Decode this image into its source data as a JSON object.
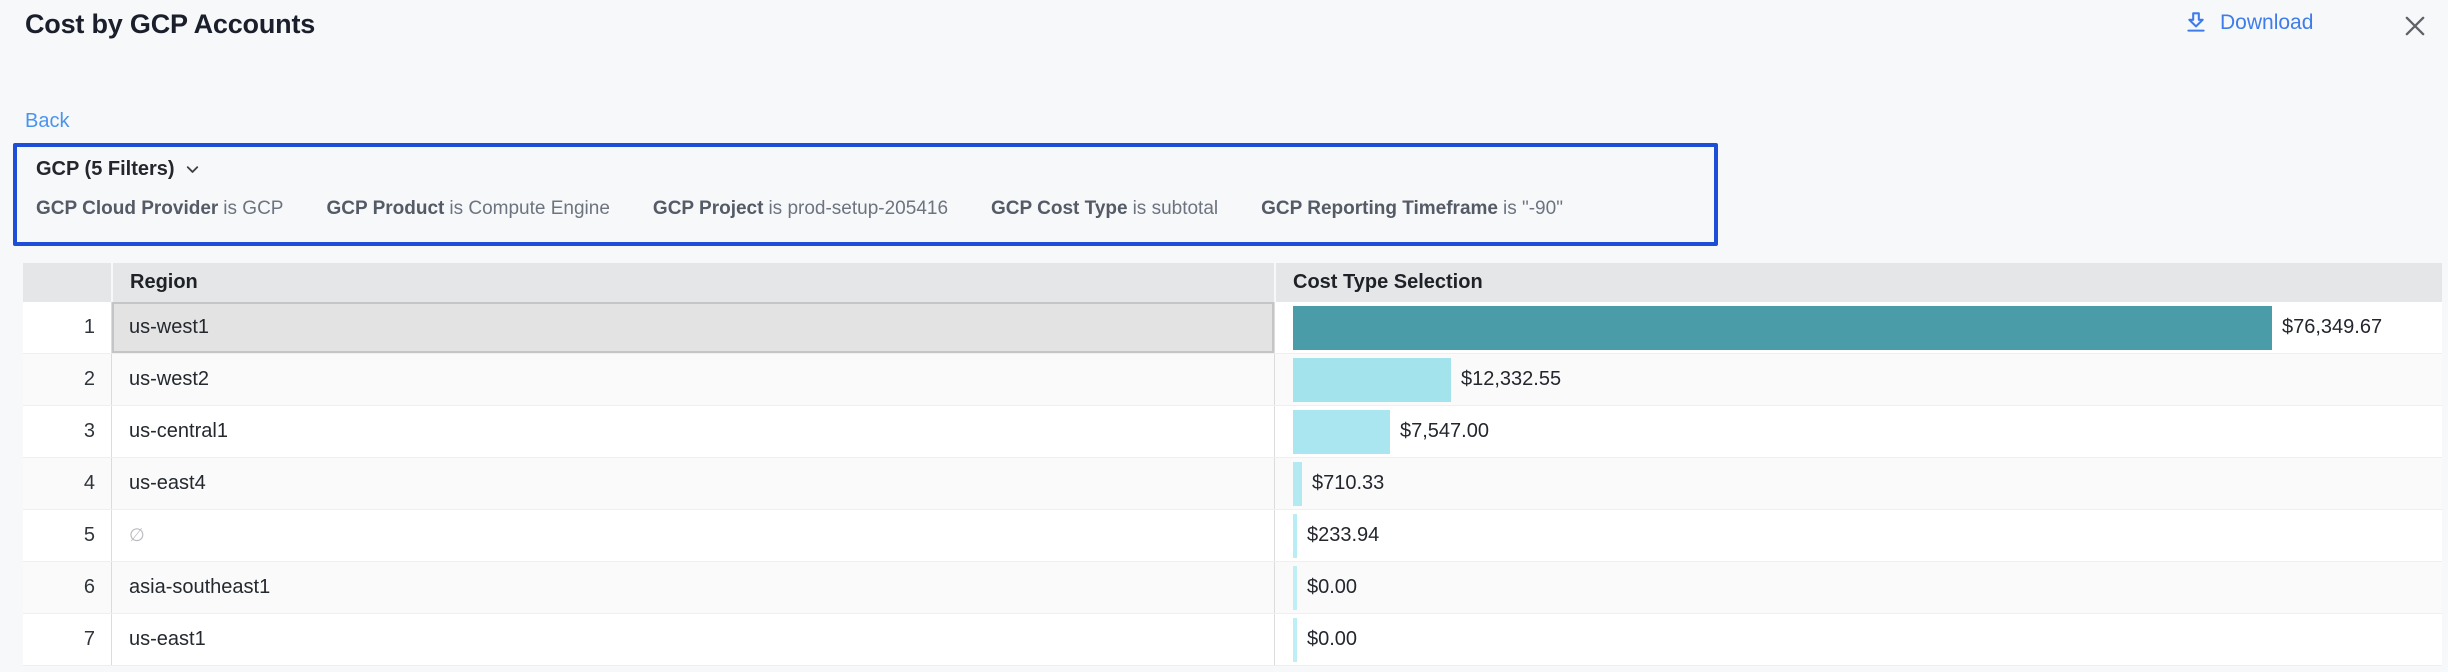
{
  "header": {
    "title": "Cost by GCP Accounts",
    "download_label": "Download"
  },
  "nav": {
    "back_label": "Back"
  },
  "filter_box": {
    "summary": "GCP (5 Filters)",
    "filters": [
      {
        "label": "GCP Cloud Provider",
        "condition": "is GCP"
      },
      {
        "label": "GCP Product",
        "condition": "is Compute Engine"
      },
      {
        "label": "GCP Project",
        "condition": "is prod-setup-205416"
      },
      {
        "label": "GCP Cost Type",
        "condition": "is subtotal"
      },
      {
        "label": "GCP Reporting Timeframe",
        "condition": "is \"-90\""
      }
    ]
  },
  "table": {
    "columns": [
      "Region",
      "Cost Type Selection"
    ],
    "max_value": 76349.67,
    "rows": [
      {
        "index": 1,
        "region": "us-west1",
        "is_null": false,
        "selected": true,
        "value": 76349.67,
        "value_label": "$76,349.67",
        "bar_color": "#4A9DA8"
      },
      {
        "index": 2,
        "region": "us-west2",
        "is_null": false,
        "selected": false,
        "value": 12332.55,
        "value_label": "$12,332.55",
        "bar_color": "#A3E3EC"
      },
      {
        "index": 3,
        "region": "us-central1",
        "is_null": false,
        "selected": false,
        "value": 7547.0,
        "value_label": "$7,547.00",
        "bar_color": "#AAE6EF"
      },
      {
        "index": 4,
        "region": "us-east4",
        "is_null": false,
        "selected": false,
        "value": 710.33,
        "value_label": "$710.33",
        "bar_color": "#B3EAF2"
      },
      {
        "index": 5,
        "region": "∅",
        "is_null": true,
        "selected": false,
        "value": 233.94,
        "value_label": "$233.94",
        "bar_color": "#B8EDF4"
      },
      {
        "index": 6,
        "region": "asia-southeast1",
        "is_null": false,
        "selected": false,
        "value": 0,
        "value_label": "$0.00",
        "bar_color": "#BEEFF5"
      },
      {
        "index": 7,
        "region": "us-east1",
        "is_null": false,
        "selected": false,
        "value": 0,
        "value_label": "$0.00",
        "bar_color": "#BEEFF5"
      }
    ]
  },
  "chart_data": {
    "type": "bar",
    "orientation": "horizontal",
    "title": "Cost by GCP Accounts",
    "categories": [
      "us-west1",
      "us-west2",
      "us-central1",
      "us-east4",
      "∅",
      "asia-southeast1",
      "us-east1"
    ],
    "values": [
      76349.67,
      12332.55,
      7547.0,
      710.33,
      233.94,
      0.0,
      0.0
    ],
    "value_labels": [
      "$76,349.67",
      "$12,332.55",
      "$7,547.00",
      "$710.33",
      "$233.94",
      "$0.00",
      "$0.00"
    ],
    "xlabel": "Cost Type Selection",
    "ylabel": "Region",
    "xlim": [
      0,
      76349.67
    ],
    "grid": false,
    "legend": false
  },
  "colors": {
    "accent_blue": "#3e7de9",
    "back_link_blue": "#4b94ec",
    "filter_border_blue": "#1c4ed8",
    "header_bg": "#e5e6e8",
    "row_stripe": "#fafafa",
    "selected_cell_bg": "#e3e3e4",
    "bar_primary_teal": "#4A9DA8",
    "bar_light_cyan": "#A3E3EC",
    "close_icon_gray": "#5f6368"
  }
}
